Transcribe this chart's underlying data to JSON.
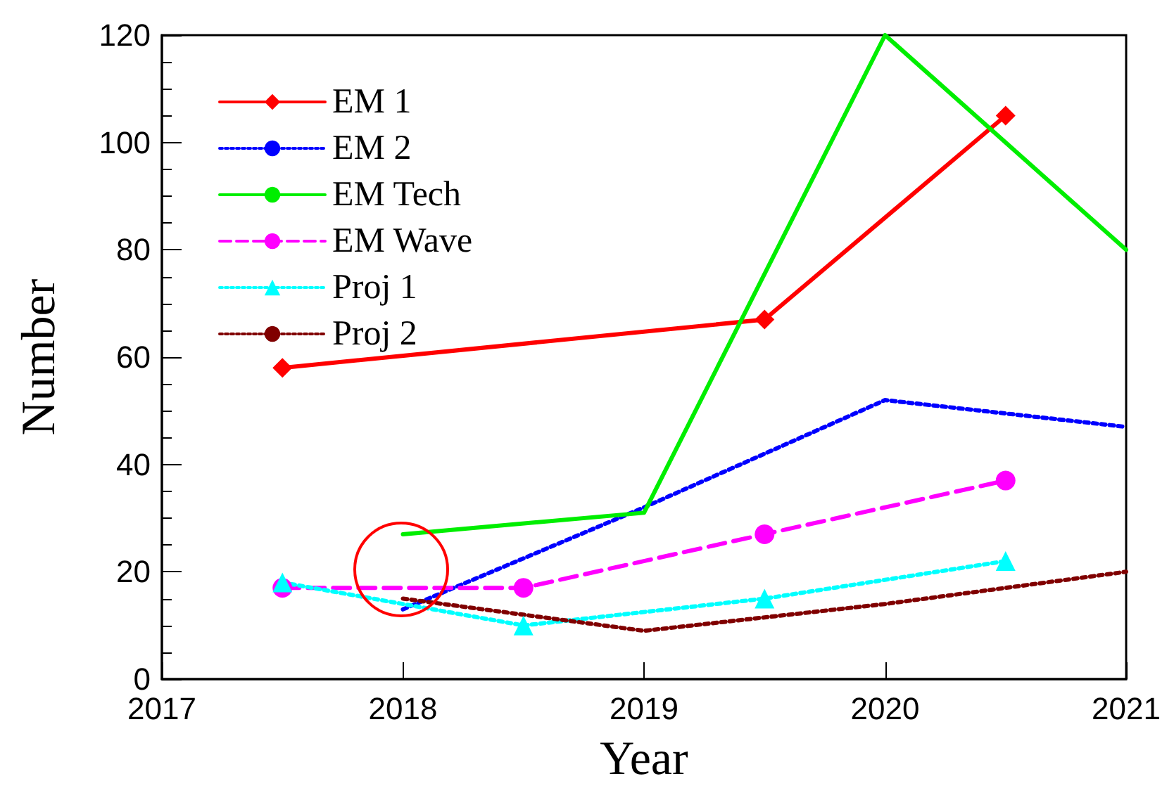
{
  "chart_data": {
    "type": "line",
    "xlabel": "Year",
    "ylabel": "Number",
    "xlim": [
      2017,
      2021
    ],
    "xticks": [
      2017,
      2018,
      2019,
      2020,
      2021
    ],
    "ylim": [
      0,
      120
    ],
    "yticks": [
      0,
      20,
      40,
      60,
      80,
      100,
      120
    ],
    "grid": false,
    "legend": "top left",
    "series": [
      {
        "name": "EM 1",
        "color": "#ff0000",
        "x": [
          2017.5,
          2019.5,
          2020.5
        ],
        "values": [
          58,
          67,
          105
        ],
        "marker": "diamond",
        "line_style": "solid"
      },
      {
        "name": "EM 2",
        "color": "#0000ff",
        "x": [
          2018,
          2019,
          2020,
          2021
        ],
        "values": [
          13,
          32,
          52,
          47
        ],
        "marker": "none",
        "line_style": "dotted"
      },
      {
        "name": "EM Tech",
        "color": "#00ee00",
        "x": [
          2018,
          2019,
          2020,
          2021
        ],
        "values": [
          27,
          31,
          120,
          80
        ],
        "marker": "none",
        "line_style": "solid"
      },
      {
        "name": "EM Wave",
        "color": "#ff00ff",
        "x": [
          2017.5,
          2018.5,
          2019.5,
          2020.5
        ],
        "values": [
          17,
          17,
          27,
          37
        ],
        "marker": "circle",
        "line_style": "dashed"
      },
      {
        "name": "Proj 1",
        "color": "#00ffff",
        "x": [
          2017.5,
          2018.5,
          2019.5,
          2020.5
        ],
        "values": [
          18,
          10,
          15,
          22
        ],
        "marker": "triangle",
        "line_style": "dotted"
      },
      {
        "name": "Proj 2",
        "color": "#800000",
        "x": [
          2018,
          2019,
          2020,
          2021
        ],
        "values": [
          15,
          9,
          14,
          20
        ],
        "marker": "none",
        "line_style": "dotted"
      }
    ]
  }
}
